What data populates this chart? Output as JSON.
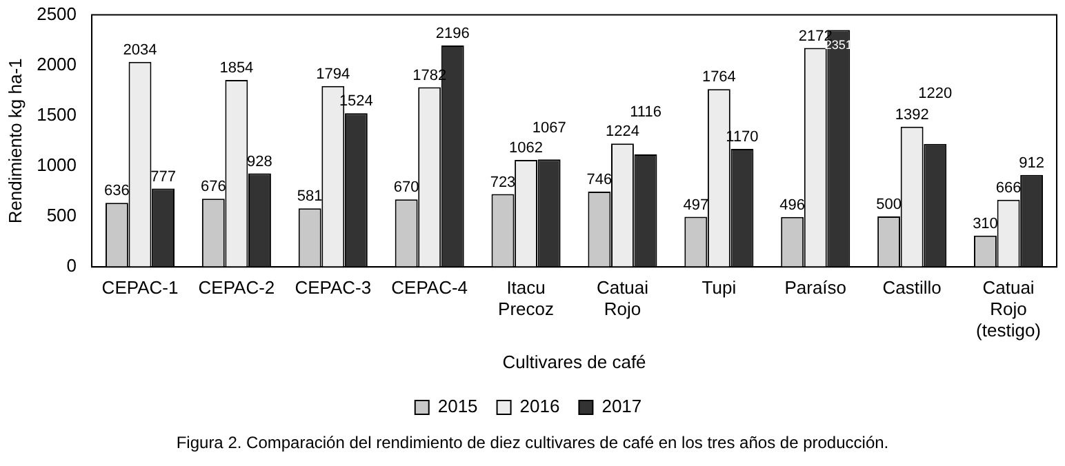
{
  "chart_data": {
    "type": "bar",
    "categories": [
      "CEPAC-1",
      "CEPAC-2",
      "CEPAC-3",
      "CEPAC-4",
      "Itacu Precoz",
      "Catuai Rojo",
      "Tupi",
      "Paraíso",
      "Castillo",
      "Catuai Rojo (testigo)"
    ],
    "series": [
      {
        "name": "2015",
        "color": "#c8c8c8",
        "values": [
          636,
          676,
          581,
          670,
          723,
          746,
          497,
          496,
          500,
          310
        ]
      },
      {
        "name": "2016",
        "color": "#ececec",
        "values": [
          2034,
          1854,
          1794,
          1782,
          1062,
          1224,
          1764,
          2172,
          1392,
          666
        ]
      },
      {
        "name": "2017",
        "color": "#333333",
        "values": [
          777,
          928,
          1524,
          2196,
          1067,
          1116,
          1170,
          2351,
          1220,
          912
        ]
      }
    ],
    "ylim": [
      0,
      2500
    ],
    "yticks": [
      0,
      500,
      1000,
      1500,
      2000,
      2500
    ],
    "xlabel": "Cultivares de café",
    "ylabel": "Rendimiento kg ha-1",
    "data_labels": true,
    "grid": false,
    "legend": "bottom",
    "annotations": [
      "Figura 2. Comparación del rendimiento de diez cultivares de café en los tres años de producción."
    ]
  }
}
